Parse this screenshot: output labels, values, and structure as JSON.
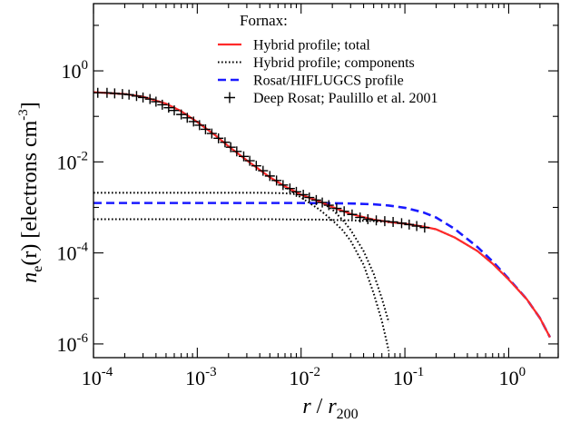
{
  "chart_data": {
    "type": "line",
    "title": "",
    "xscale": "log",
    "yscale": "log",
    "xlim": [
      0.0001,
      3.0
    ],
    "ylim": [
      5e-07,
      30
    ],
    "xlabel": {
      "var": "r",
      "sep": " / ",
      "ref": "r",
      "ref_sub": "200"
    },
    "ylabel": {
      "var": "n",
      "var_sub": "e",
      "arg": "(r)",
      "units_pre": " [electrons cm",
      "units_sup": "-3",
      "units_post": "]"
    },
    "x_ticks": [
      {
        "value": 0.0001,
        "base": "10",
        "exp": "-4"
      },
      {
        "value": 0.001,
        "base": "10",
        "exp": "-3"
      },
      {
        "value": 0.01,
        "base": "10",
        "exp": "-2"
      },
      {
        "value": 0.1,
        "base": "10",
        "exp": "-1"
      },
      {
        "value": 1,
        "base": "10",
        "exp": "0"
      }
    ],
    "y_ticks": [
      {
        "value": 1e-06,
        "base": "10",
        "exp": "-6"
      },
      {
        "value": 0.0001,
        "base": "10",
        "exp": "-4"
      },
      {
        "value": 0.01,
        "base": "10",
        "exp": "-2"
      },
      {
        "value": 1,
        "base": "10",
        "exp": "0"
      }
    ],
    "legend": {
      "title": "Fornax:",
      "position": "top-right",
      "entries": [
        {
          "label": "Hybrid profile; total",
          "style": "solid",
          "color": "#ff2a2a"
        },
        {
          "label": "Hybrid profile; components",
          "style": "dotted",
          "color": "#000000"
        },
        {
          "label": "Rosat/HIFLUGCS profile",
          "style": "dashed",
          "color": "#1a1aff"
        },
        {
          "label": "Deep Rosat; Paulillo et al. 2001",
          "style": "plus",
          "color": "#000000"
        }
      ]
    },
    "series": [
      {
        "name": "Hybrid profile; total",
        "style": "solid",
        "color": "#ff2a2a",
        "x": [
          0.0001,
          0.0002,
          0.0003,
          0.0005,
          0.0007,
          0.001,
          0.0015,
          0.002,
          0.003,
          0.005,
          0.007,
          0.01,
          0.015,
          0.02,
          0.03,
          0.05,
          0.07,
          0.1,
          0.15,
          0.2,
          0.3,
          0.5,
          0.7,
          1.0,
          1.5,
          2.0,
          2.5
        ],
        "y": [
          0.34,
          0.31,
          0.27,
          0.19,
          0.13,
          0.075,
          0.038,
          0.022,
          0.0108,
          0.0046,
          0.0029,
          0.0019,
          0.00135,
          0.00102,
          0.00072,
          0.00054,
          0.00048,
          0.00044,
          0.00038,
          0.00033,
          0.00022,
          0.00011,
          5.8e-05,
          2.6e-05,
          9.5e-06,
          3.7e-06,
          1.4e-06
        ]
      },
      {
        "name": "Hybrid profile; components (inner)",
        "style": "dotted",
        "color": "#000000",
        "x": [
          0.0001,
          0.0002,
          0.0003,
          0.0005,
          0.0007,
          0.001,
          0.0015,
          0.002,
          0.003,
          0.005,
          0.007,
          0.01,
          0.015,
          0.02,
          0.025,
          0.03,
          0.04,
          0.05,
          0.06,
          0.07
        ],
        "y": [
          0.34,
          0.31,
          0.27,
          0.19,
          0.13,
          0.075,
          0.038,
          0.022,
          0.0108,
          0.0046,
          0.0028,
          0.00165,
          0.0009,
          0.00052,
          0.00032,
          0.000185,
          5.5e-05,
          1.3e-05,
          3.2e-06,
          7e-07
        ]
      },
      {
        "name": "Hybrid profile; components (core, upper)",
        "style": "dotted",
        "color": "#000000",
        "x": [
          0.0001,
          0.001,
          0.004,
          0.007,
          0.01,
          0.015,
          0.02,
          0.025,
          0.03,
          0.04,
          0.05,
          0.06,
          0.07
        ],
        "y": [
          0.0021,
          0.0021,
          0.0021,
          0.00205,
          0.0019,
          0.0014,
          0.0009,
          0.00054,
          0.00032,
          0.00011,
          3.5e-05,
          1e-05,
          3e-06
        ]
      },
      {
        "name": "Hybrid profile; components (core, lower)",
        "style": "dotted",
        "color": "#000000",
        "x": [
          0.0001,
          0.001,
          0.005,
          0.01,
          0.015,
          0.02,
          0.03,
          0.05,
          0.07,
          0.1,
          0.15,
          0.2,
          0.3,
          0.5,
          0.7,
          1.0,
          1.5,
          2.0,
          2.5
        ],
        "y": [
          0.00055,
          0.00055,
          0.00055,
          0.00054,
          0.00054,
          0.00053,
          0.00052,
          0.0005,
          0.00047,
          0.00044,
          0.00038,
          0.00033,
          0.00022,
          0.00011,
          5.8e-05,
          2.6e-05,
          9.5e-06,
          3.7e-06,
          1.4e-06
        ]
      },
      {
        "name": "Rosat/HIFLUGCS profile",
        "style": "dashed",
        "color": "#1a1aff",
        "x": [
          0.0001,
          0.001,
          0.01,
          0.03,
          0.05,
          0.07,
          0.1,
          0.15,
          0.2,
          0.3,
          0.5,
          0.7,
          1.0,
          1.5,
          2.0,
          2.5
        ],
        "y": [
          0.00125,
          0.00125,
          0.00125,
          0.00122,
          0.00117,
          0.0011,
          0.00098,
          0.00078,
          0.0006,
          0.00034,
          0.000135,
          6.5e-05,
          2.7e-05,
          9.5e-06,
          3.7e-06,
          1.4e-06
        ]
      },
      {
        "name": "Deep Rosat; Paulillo et al. 2001",
        "style": "plus",
        "color": "#000000",
        "x": [
          0.00011,
          0.000135,
          0.00016,
          0.00019,
          0.00022,
          0.00026,
          0.0003,
          0.00035,
          0.0004,
          0.00046,
          0.00053,
          0.0006,
          0.0007,
          0.0008,
          0.00092,
          0.00105,
          0.0012,
          0.00138,
          0.0016,
          0.00185,
          0.0021,
          0.0024,
          0.0028,
          0.0032,
          0.0037,
          0.0043,
          0.005,
          0.0058,
          0.0067,
          0.0078,
          0.009,
          0.0105,
          0.012,
          0.014,
          0.016,
          0.0185,
          0.022,
          0.026,
          0.031,
          0.037,
          0.044,
          0.053,
          0.064,
          0.077,
          0.093,
          0.11,
          0.13,
          0.155
        ],
        "y": [
          0.33,
          0.33,
          0.32,
          0.31,
          0.3,
          0.28,
          0.26,
          0.24,
          0.21,
          0.18,
          0.155,
          0.135,
          0.11,
          0.093,
          0.077,
          0.064,
          0.052,
          0.042,
          0.033,
          0.027,
          0.021,
          0.017,
          0.0132,
          0.0106,
          0.0082,
          0.0064,
          0.0049,
          0.0039,
          0.0031,
          0.0026,
          0.0022,
          0.0019,
          0.00165,
          0.00145,
          0.00128,
          0.00112,
          0.00095,
          0.00082,
          0.0007,
          0.0006,
          0.00055,
          0.00052,
          0.0005,
          0.00048,
          0.00045,
          0.00042,
          0.00039,
          0.00036
        ]
      }
    ]
  }
}
